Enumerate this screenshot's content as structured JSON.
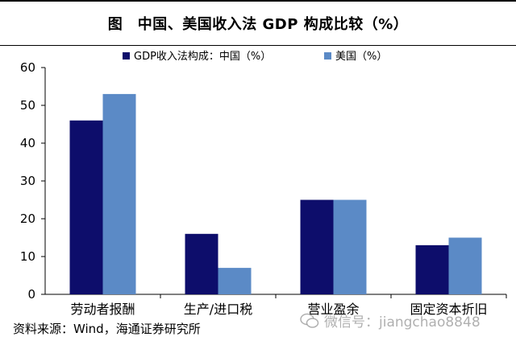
{
  "header": {
    "title": "图　中国、美国收入法 GDP 构成比较（%）"
  },
  "chart_data": {
    "type": "bar",
    "categories": [
      "劳动者报酬",
      "生产/进口税",
      "营业盈余",
      "固定资本折旧"
    ],
    "series": [
      {
        "name": "GDP收入法构成：中国（%）",
        "values": [
          46,
          16,
          25,
          13
        ],
        "color": "#0d0d6b"
      },
      {
        "name": "美国（%）",
        "values": [
          53,
          7,
          25,
          15
        ],
        "color": "#5b8ac6"
      }
    ],
    "ylim": [
      0,
      60
    ],
    "yticks": [
      "0",
      "10",
      "20",
      "30",
      "40",
      "50",
      "60"
    ],
    "grid": false,
    "legend_position": "top-center"
  },
  "footer": {
    "source": "资料来源：Wind，海通证券研究所",
    "watermark": "微信号：jiangchao8848"
  }
}
